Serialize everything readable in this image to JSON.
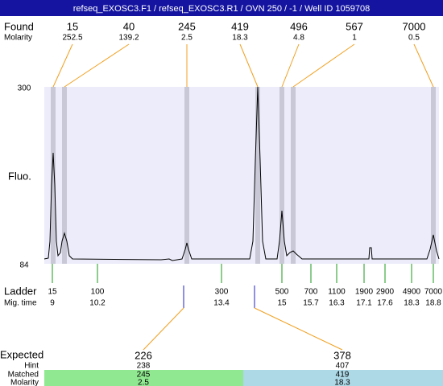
{
  "header": {
    "title": "refseq_EXOSC3.F1 / refseq_EXOSC3.R1 / OVN 250 / -1 / Well ID 1059708"
  },
  "found": {
    "label": "Found",
    "molarity_label": "Molarity",
    "peaks": [
      {
        "size": 15,
        "molarity": 252.5
      },
      {
        "size": 40,
        "molarity": 139.2
      },
      {
        "size": 245,
        "molarity": 2.5
      },
      {
        "size": 419,
        "molarity": 18.3
      },
      {
        "size": 496,
        "molarity": 4.8
      },
      {
        "size": 567,
        "molarity": 1
      },
      {
        "size": 7000,
        "molarity": 0.5
      }
    ]
  },
  "axis": {
    "y_label": "Fluo.",
    "y_top": 300,
    "y_bottom": 84
  },
  "ladder": {
    "label": "Ladder",
    "mig_label": "Mig. time",
    "bands": [
      {
        "size": 15,
        "mig_time": 9
      },
      {
        "size": 100,
        "mig_time": 10.2
      },
      {
        "size": 300,
        "mig_time": 13.4
      },
      {
        "size": 500,
        "mig_time": 15
      },
      {
        "size": 700,
        "mig_time": 15.7
      },
      {
        "size": 1100,
        "mig_time": 16.3
      },
      {
        "size": 1900,
        "mig_time": 17.1
      },
      {
        "size": 2900,
        "mig_time": 17.6
      },
      {
        "size": 4900,
        "mig_time": 18.3
      },
      {
        "size": 7000,
        "mig_time": 18.8
      }
    ]
  },
  "expected": {
    "label": "Expected",
    "hint_label": "Hint",
    "matched_label": "Matched",
    "molarity_label": "Molarity",
    "groups": [
      {
        "expected": 226,
        "hint": 238,
        "matched": 245,
        "molarity": 2.5
      },
      {
        "expected": 378,
        "hint": 407,
        "matched": 419,
        "molarity": 18.3
      }
    ]
  }
}
